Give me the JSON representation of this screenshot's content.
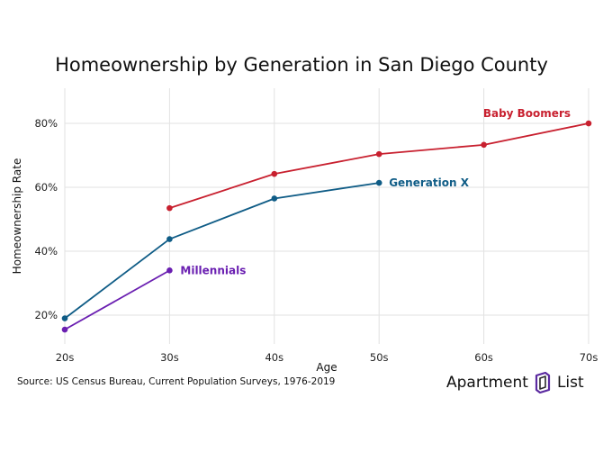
{
  "chart_data": {
    "type": "line",
    "title": "Homeownership by Generation in San Diego County",
    "xlabel": "Age",
    "ylabel": "Homeownership Rate",
    "categories": [
      "20s",
      "30s",
      "40s",
      "50s",
      "60s",
      "70s"
    ],
    "yticks": [
      "20%",
      "40%",
      "60%",
      "80%"
    ],
    "ylim": [
      11,
      91
    ],
    "grid": true,
    "series": [
      {
        "name": "Baby Boomers",
        "color": "#c8202f",
        "values": [
          null,
          53.5,
          64.2,
          70.4,
          73.3,
          80.0
        ]
      },
      {
        "name": "Generation X",
        "color": "#0f5c86",
        "values": [
          19.0,
          43.8,
          56.5,
          61.4,
          null,
          null
        ]
      },
      {
        "name": "Millennials",
        "color": "#6a1fb1",
        "values": [
          15.5,
          34.0,
          null,
          null,
          null,
          null
        ]
      }
    ]
  },
  "source": "Source: US Census Bureau, Current Population Surveys, 1976-2019",
  "logo": {
    "word1": "Apartment",
    "word2": "List"
  }
}
